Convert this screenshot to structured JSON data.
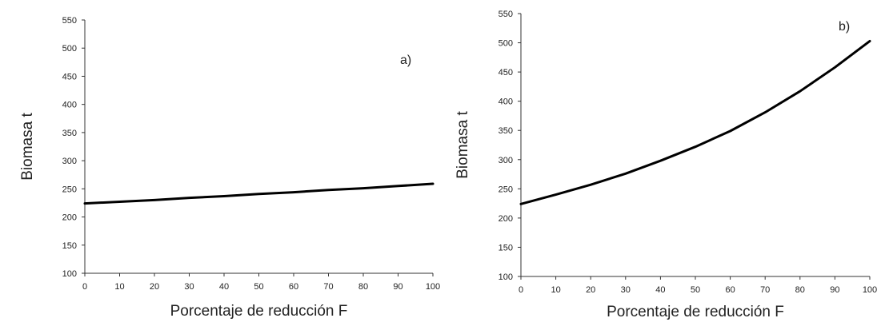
{
  "chart_data": [
    {
      "type": "line",
      "panel_label": "a)",
      "xlabel": "Porcentaje de reducción F",
      "ylabel": "Biomasa t",
      "xlim": [
        0,
        100
      ],
      "ylim": [
        100,
        550
      ],
      "x_ticks": [
        0,
        10,
        20,
        30,
        40,
        50,
        60,
        70,
        80,
        90,
        100
      ],
      "y_ticks": [
        100,
        150,
        200,
        250,
        300,
        350,
        400,
        450,
        500,
        550
      ],
      "grid": false,
      "series": [
        {
          "x": [
            0,
            10,
            20,
            30,
            40,
            50,
            60,
            70,
            80,
            90,
            100
          ],
          "values": [
            224,
            227,
            230,
            234,
            237,
            241,
            244,
            248,
            251,
            255,
            259
          ]
        }
      ]
    },
    {
      "type": "line",
      "panel_label": "b)",
      "xlabel": "Porcentaje de reducción F",
      "ylabel": "Biomasa t",
      "xlim": [
        0,
        100
      ],
      "ylim": [
        100,
        550
      ],
      "x_ticks": [
        0,
        10,
        20,
        30,
        40,
        50,
        60,
        70,
        80,
        90,
        100
      ],
      "y_ticks": [
        100,
        150,
        200,
        250,
        300,
        350,
        400,
        450,
        500,
        550
      ],
      "grid": false,
      "series": [
        {
          "x": [
            0,
            10,
            20,
            30,
            40,
            50,
            60,
            70,
            80,
            90,
            100
          ],
          "values": [
            224,
            240,
            257,
            276,
            298,
            322,
            349,
            381,
            417,
            458,
            503
          ]
        }
      ]
    }
  ]
}
